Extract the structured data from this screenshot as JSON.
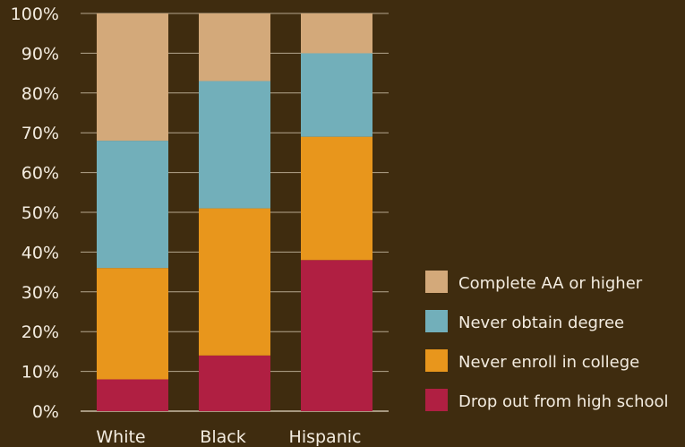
{
  "chart_data": {
    "type": "bar",
    "stacked": true,
    "categories": [
      "White",
      "Black",
      "Hispanic"
    ],
    "series": [
      {
        "name": "Drop out from high school",
        "color": "#b01f42",
        "values": [
          8,
          14,
          38
        ]
      },
      {
        "name": "Never enroll in college",
        "color": "#e8961c",
        "values": [
          28,
          37,
          31
        ]
      },
      {
        "name": "Never obtain degree",
        "color": "#72afba",
        "values": [
          32,
          32,
          21
        ]
      },
      {
        "name": "Complete AA or higher",
        "color": "#d3a97a",
        "values": [
          32,
          17,
          10
        ]
      }
    ],
    "ylim": [
      0,
      100
    ],
    "yticks": [
      "0%",
      "10%",
      "20%",
      "30%",
      "40%",
      "50%",
      "60%",
      "70%",
      "80%",
      "90%",
      "100%"
    ],
    "legend_order": [
      "Complete AA or higher",
      "Never obtain degree",
      "Never enroll in college",
      "Drop out from high school"
    ],
    "legend_position": "right",
    "grid": true,
    "colors": {
      "background": "#3f2c0f",
      "text": "#f3ece0",
      "gridline": "#c9bca5"
    }
  }
}
